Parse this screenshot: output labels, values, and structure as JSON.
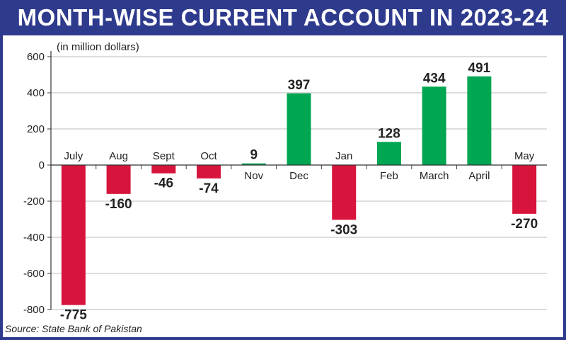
{
  "header": {
    "title": "MONTH-WISE CURRENT ACCOUNT IN 2023-24"
  },
  "chart_data": {
    "type": "bar",
    "unit_label": "(in million dollars)",
    "source": "Source: State Bank of Pakistan",
    "categories": [
      "July",
      "Aug",
      "Sept",
      "Oct",
      "Nov",
      "Dec",
      "Jan",
      "Feb",
      "March",
      "April",
      "May"
    ],
    "values": [
      -775,
      -160,
      -46,
      -74,
      9,
      397,
      -303,
      128,
      434,
      491,
      -270
    ],
    "value_labels": [
      "-775",
      "-160",
      "-46",
      "-74",
      "9",
      "397",
      "-303",
      "128",
      "434",
      "491",
      "-270"
    ],
    "ylim": [
      -800,
      600
    ],
    "yticks": [
      "600",
      "400",
      "200",
      "0",
      "-200",
      "-400",
      "-600",
      "-800"
    ],
    "ytick_values": [
      600,
      400,
      200,
      0,
      -200,
      -400,
      -600,
      -800
    ],
    "grid": true,
    "colors": {
      "positive": "#00a651",
      "negative": "#d7143c",
      "frame": "#2e3a8c"
    }
  }
}
